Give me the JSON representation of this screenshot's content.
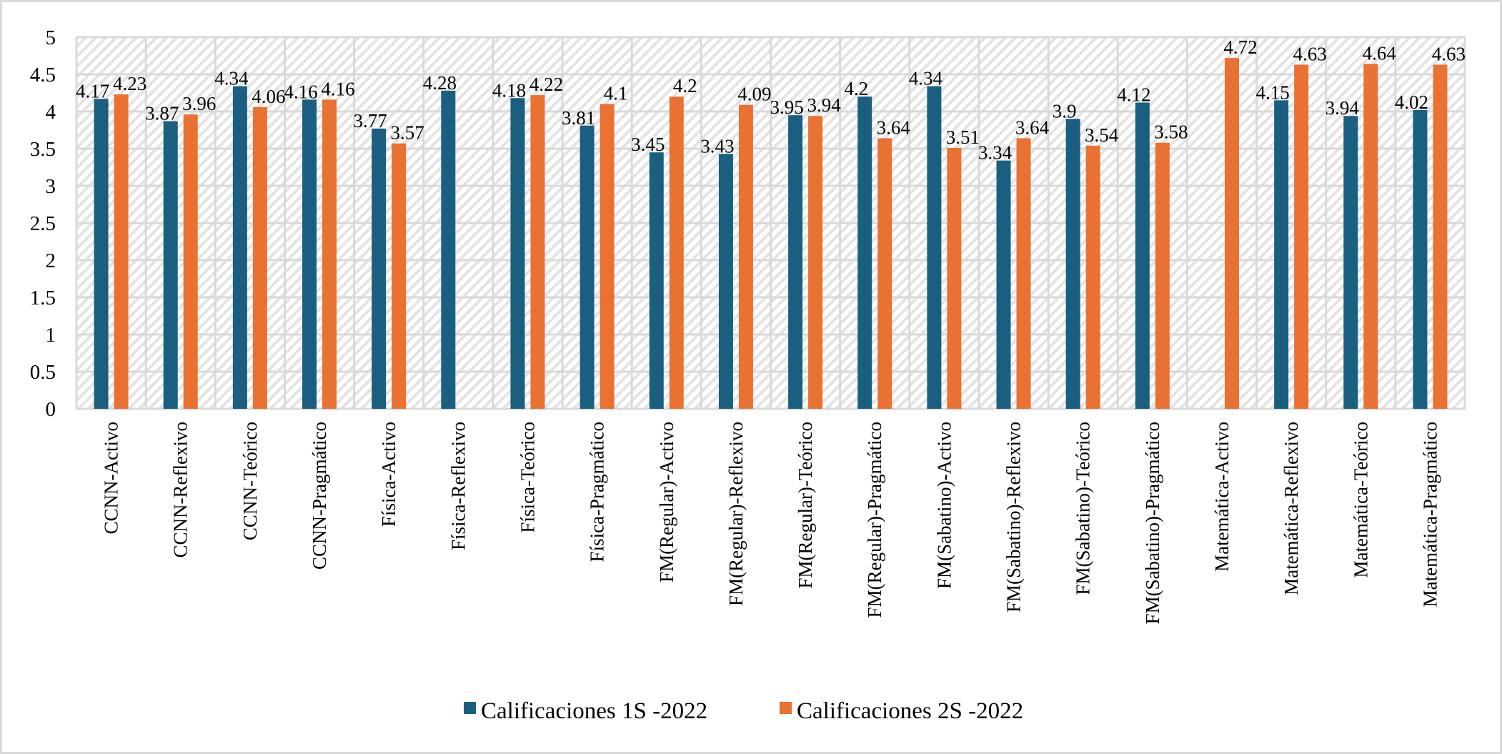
{
  "chart_data": {
    "type": "bar",
    "title": "",
    "xlabel": "",
    "ylabel": "",
    "ylim": [
      0,
      5
    ],
    "yticks": [
      "0",
      "0.5",
      "1",
      "1.5",
      "2",
      "2.5",
      "3",
      "3.5",
      "4",
      "4.5",
      "5"
    ],
    "ytick_values": [
      0,
      0.5,
      1,
      1.5,
      2,
      2.5,
      3,
      3.5,
      4,
      4.5,
      5
    ],
    "grid": true,
    "legend_position": "bottom",
    "categories": [
      "CCNN-Activo",
      "CCNN-Reflexivo",
      "CCNN-Teórico",
      "CCNN-Pragmático",
      "Física-Activo",
      "Física-Reflexivo",
      "Física-Teórico",
      "Física-Pragmático",
      "FM(Regular)-Activo",
      "FM(Regular)-Reflexivo",
      "FM(Regular)-Teórico",
      "FM(Regular)-Pragmático",
      "FM(Sabatino)-Activo",
      "FM(Sabatino)-Reflexivo",
      "FM(Sabatino)-Teórico",
      "FM(Sabatino)-Pragmático",
      "Matemática-Activo",
      "Matemática-Reflexivo",
      "Matemática-Teórico",
      "Matemática-Pragmático"
    ],
    "series": [
      {
        "name": "Calificaciones 1S -2022",
        "color": "#1a5e80",
        "values": [
          4.17,
          3.87,
          4.34,
          4.16,
          3.77,
          4.28,
          4.18,
          3.81,
          3.45,
          3.43,
          3.95,
          4.2,
          4.34,
          3.34,
          3.9,
          4.12,
          null,
          4.15,
          3.94,
          4.02
        ],
        "labels": [
          "4.17",
          "3.87",
          "4.34",
          "4.16",
          "3.77",
          "4.28",
          "4.18",
          "3.81",
          "3.45",
          "3.43",
          "3.95",
          "4.2",
          "4.34",
          "3.34",
          "3.9",
          "4.12",
          null,
          "4.15",
          "3.94",
          "4.02"
        ]
      },
      {
        "name": "Calificaciones 2S -2022",
        "color": "#e97132",
        "values": [
          4.23,
          3.96,
          4.06,
          4.16,
          3.57,
          null,
          4.22,
          4.1,
          4.2,
          4.09,
          3.94,
          3.64,
          3.51,
          3.64,
          3.54,
          3.58,
          4.72,
          4.63,
          4.64,
          4.63
        ],
        "labels": [
          "4.23",
          "3.96",
          "4.06",
          "4.16",
          "3.57",
          null,
          "4.22",
          "4.1",
          "4.2",
          "4.09",
          "3.94",
          "3.64",
          "3.51",
          "3.64",
          "3.54",
          "3.58",
          "4.72",
          "4.63",
          "4.64",
          "4.63"
        ]
      }
    ]
  },
  "colors": {
    "grid": "#d9d9d9",
    "border": "#d9d9d9"
  }
}
